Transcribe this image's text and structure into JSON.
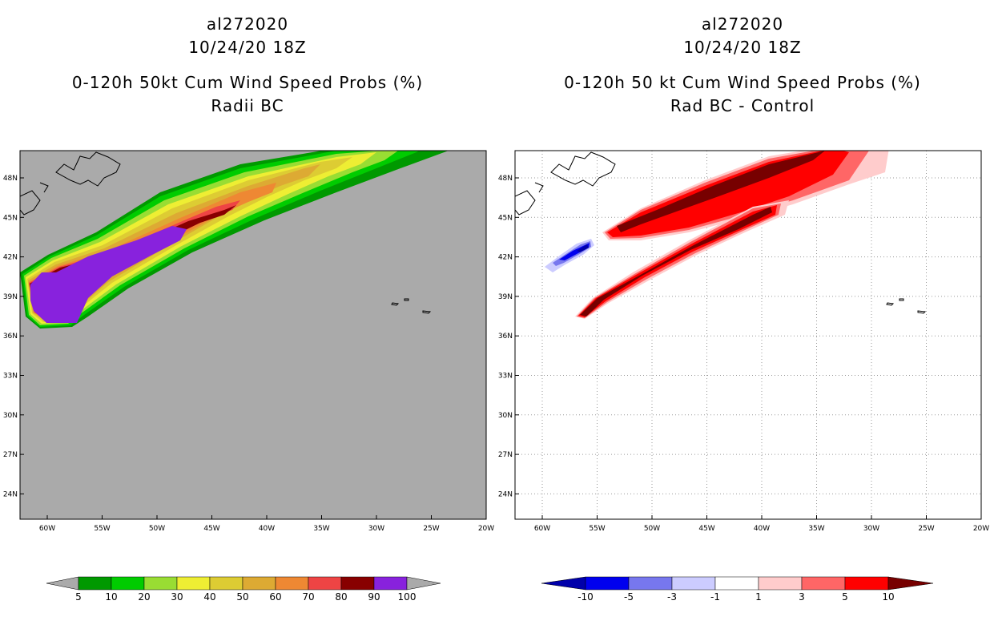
{
  "left_panel": {
    "storm_id": "al272020",
    "datetime": "10/24/20 18Z",
    "title": "0-120h 50kt Cum Wind Speed Probs (%)",
    "subtitle": "Radii BC",
    "colorbar": {
      "labels": [
        "5",
        "10",
        "20",
        "30",
        "40",
        "50",
        "60",
        "70",
        "80",
        "90",
        "100"
      ],
      "colors": [
        "#009900",
        "#00cc00",
        "#99dd33",
        "#eeee33",
        "#ddcc33",
        "#ddaa33",
        "#ee8833",
        "#ee4444",
        "#880000",
        "#8822dd"
      ],
      "background": "#aaaaaa"
    }
  },
  "right_panel": {
    "storm_id": "al272020",
    "datetime": "10/24/20 18Z",
    "title": "0-120h 50 kt Cum Wind Speed Probs (%)",
    "subtitle": "Rad BC - Control",
    "colorbar": {
      "labels": [
        "-10",
        "-5",
        "-3",
        "-1",
        "1",
        "3",
        "5",
        "10"
      ],
      "colors": [
        "#0000aa",
        "#0000ee",
        "#7777ee",
        "#ccccff",
        "#ffffff",
        "#ffcccc",
        "#ff6666",
        "#ff0000",
        "#770000"
      ]
    }
  },
  "axes": {
    "lat_ticks": [
      "48N",
      "45N",
      "42N",
      "39N",
      "36N",
      "33N",
      "30N",
      "27N",
      "24N"
    ],
    "lon_ticks": [
      "60W",
      "55W",
      "50W",
      "45W",
      "40W",
      "35W",
      "30W",
      "25W",
      "20W"
    ]
  }
}
